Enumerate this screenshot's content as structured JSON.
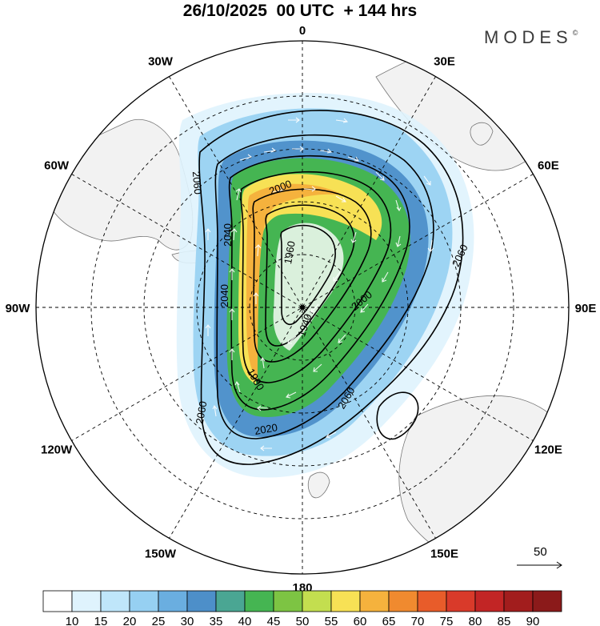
{
  "title": "26/10/2025  00 UTC  + 144 hrs",
  "brand": "MODES",
  "brand_mark": "©",
  "meridian_labels": [
    {
      "text": "0",
      "lon": 0
    },
    {
      "text": "30E",
      "lon": 30
    },
    {
      "text": "60E",
      "lon": 60
    },
    {
      "text": "90E",
      "lon": 90
    },
    {
      "text": "120E",
      "lon": 120
    },
    {
      "text": "150E",
      "lon": 150
    },
    {
      "text": "180",
      "lon": 180
    },
    {
      "text": "150W",
      "lon": -150
    },
    {
      "text": "120W",
      "lon": -120
    },
    {
      "text": "90W",
      "lon": -90
    },
    {
      "text": "60W",
      "lon": -60
    },
    {
      "text": "30W",
      "lon": -30
    }
  ],
  "contour_labels": [
    "1940",
    "1960",
    "1980",
    "2000",
    "2020",
    "2040",
    "2060"
  ],
  "reference_vector": {
    "value": "50"
  },
  "colorbar": {
    "levels": [
      "10",
      "15",
      "20",
      "25",
      "30",
      "35",
      "40",
      "45",
      "50",
      "55",
      "60",
      "65",
      "70",
      "75",
      "80",
      "85",
      "90"
    ],
    "colors": [
      "#ffffff",
      "#dff3fd",
      "#bfe6fa",
      "#96d0f2",
      "#6aaee0",
      "#4d8fc9",
      "#4aa693",
      "#45b552",
      "#7dc443",
      "#c3de4f",
      "#f7e155",
      "#f5b23d",
      "#f08a2f",
      "#e85c2a",
      "#d93a2a",
      "#c22525",
      "#a21d1d",
      "#8b1a1a"
    ]
  }
}
